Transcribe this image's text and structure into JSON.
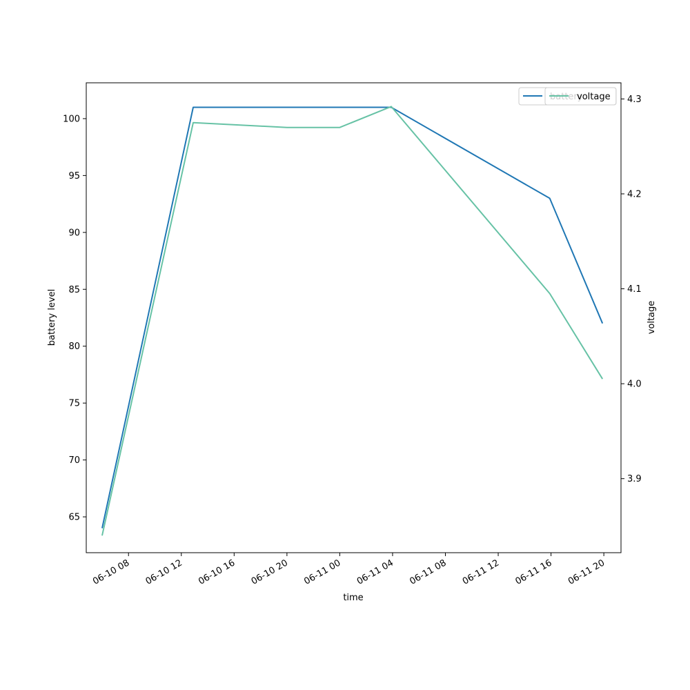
{
  "chart_data": {
    "type": "line",
    "xlabel": "time",
    "ylabel_left": "battery level",
    "ylabel_right": "voltage",
    "x_ticks": [
      "06-10 08",
      "06-10 12",
      "06-10 16",
      "06-10 20",
      "06-11 00",
      "06-11 04",
      "06-11 08",
      "06-11 12",
      "06-11 16",
      "06-11 20"
    ],
    "x_tick_hours": [
      8,
      12,
      16,
      20,
      24,
      28,
      32,
      36,
      40,
      44
    ],
    "xlim_hours": [
      4.8,
      45.3
    ],
    "y_left_ticks": [
      65,
      70,
      75,
      80,
      85,
      90,
      95,
      100
    ],
    "y_left_lim": [
      61.85,
      103.15
    ],
    "y_right_ticks": [
      3.9,
      4.0,
      4.1,
      4.2,
      4.3
    ],
    "y_right_lim": [
      3.822,
      4.317
    ],
    "legend_position": "top-right",
    "legend_entries": [
      "battery",
      "voltage"
    ],
    "series": [
      {
        "name": "battery",
        "axis": "left",
        "color": "#1f77b4",
        "x_hours": [
          6.0,
          12.9,
          27.9,
          39.9,
          43.9
        ],
        "values": [
          64,
          101,
          101,
          93,
          82
        ]
      },
      {
        "name": "voltage",
        "axis": "right",
        "color": "#66c2a5",
        "x_hours": [
          6.0,
          12.9,
          20.0,
          24.0,
          27.9,
          39.9,
          43.9
        ],
        "values": [
          3.84,
          4.275,
          4.27,
          4.27,
          4.292,
          4.095,
          4.005
        ]
      }
    ]
  }
}
